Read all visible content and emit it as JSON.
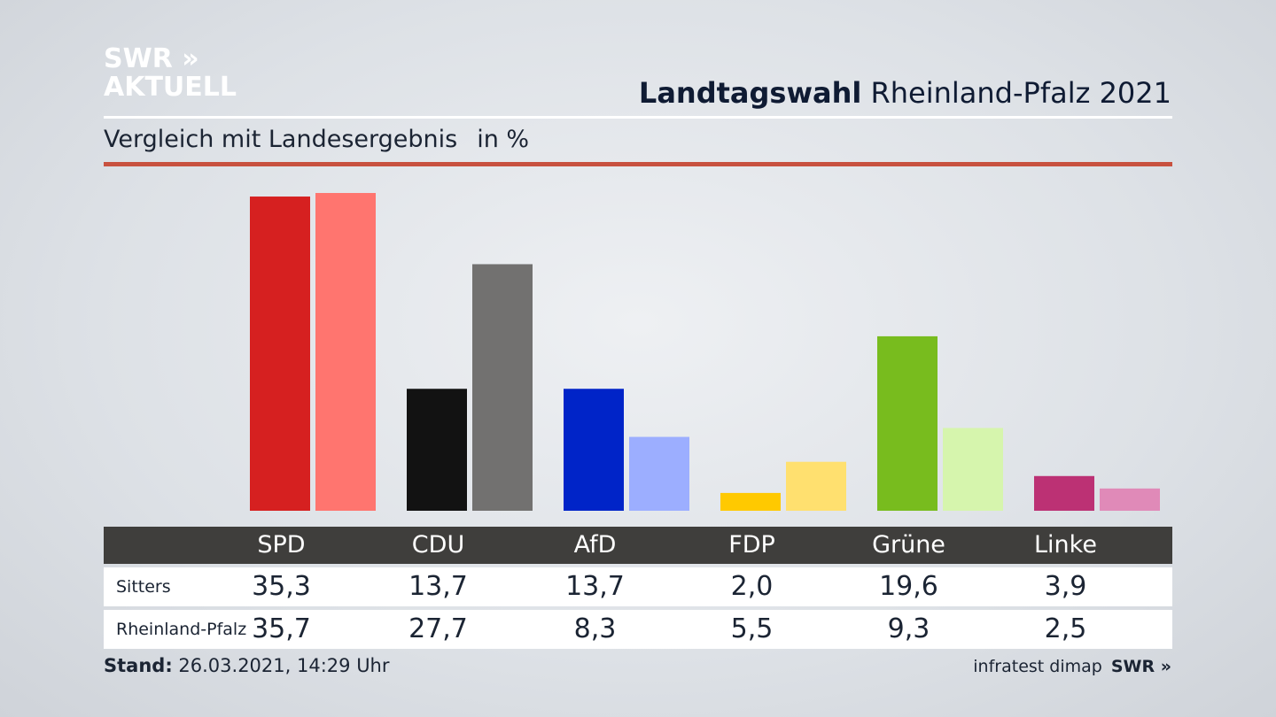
{
  "logo": {
    "line1": "SWR »",
    "line2": "AKTUELL"
  },
  "header": {
    "title_bold": "Landtagswahl",
    "title_regular": "Rheinland-Pfalz 2021"
  },
  "subtitle": {
    "text": "Vergleich mit Landesergebnis",
    "unit": "in %"
  },
  "footer": {
    "stand_label": "Stand:",
    "stand_value": "26.03.2021, 14:29 Uhr",
    "source": "infratest dimap",
    "brand": "SWR »"
  },
  "colors": {
    "accent_rule": "#c8513f",
    "table_header": "#3f3e3c",
    "SPD": [
      "#d62020",
      "#ff756f"
    ],
    "CDU": [
      "#121212",
      "#727170"
    ],
    "AfD": [
      "#0024c8",
      "#9caeff"
    ],
    "FDP": [
      "#ffc900",
      "#ffe06f"
    ],
    "Grüne": [
      "#78bc1e",
      "#d6f5ad"
    ],
    "Linke": [
      "#bc3174",
      "#e08ab8"
    ]
  },
  "chart_data": {
    "type": "bar",
    "categories": [
      "SPD",
      "CDU",
      "AfD",
      "FDP",
      "Grüne",
      "Linke"
    ],
    "series": [
      {
        "name": "Sitters",
        "values": [
          35.3,
          13.7,
          13.7,
          2.0,
          19.6,
          3.9
        ]
      },
      {
        "name": "Rheinland-Pfalz",
        "values": [
          35.7,
          27.7,
          8.3,
          5.5,
          9.3,
          2.5
        ]
      }
    ],
    "value_labels": [
      [
        "35,3",
        "13,7",
        "13,7",
        "2,0",
        "19,6",
        "3,9"
      ],
      [
        "35,7",
        "27,7",
        "8,3",
        "5,5",
        "9,3",
        "2,5"
      ]
    ],
    "ylim": [
      0,
      36
    ],
    "grid": false,
    "legend": "table-below"
  }
}
